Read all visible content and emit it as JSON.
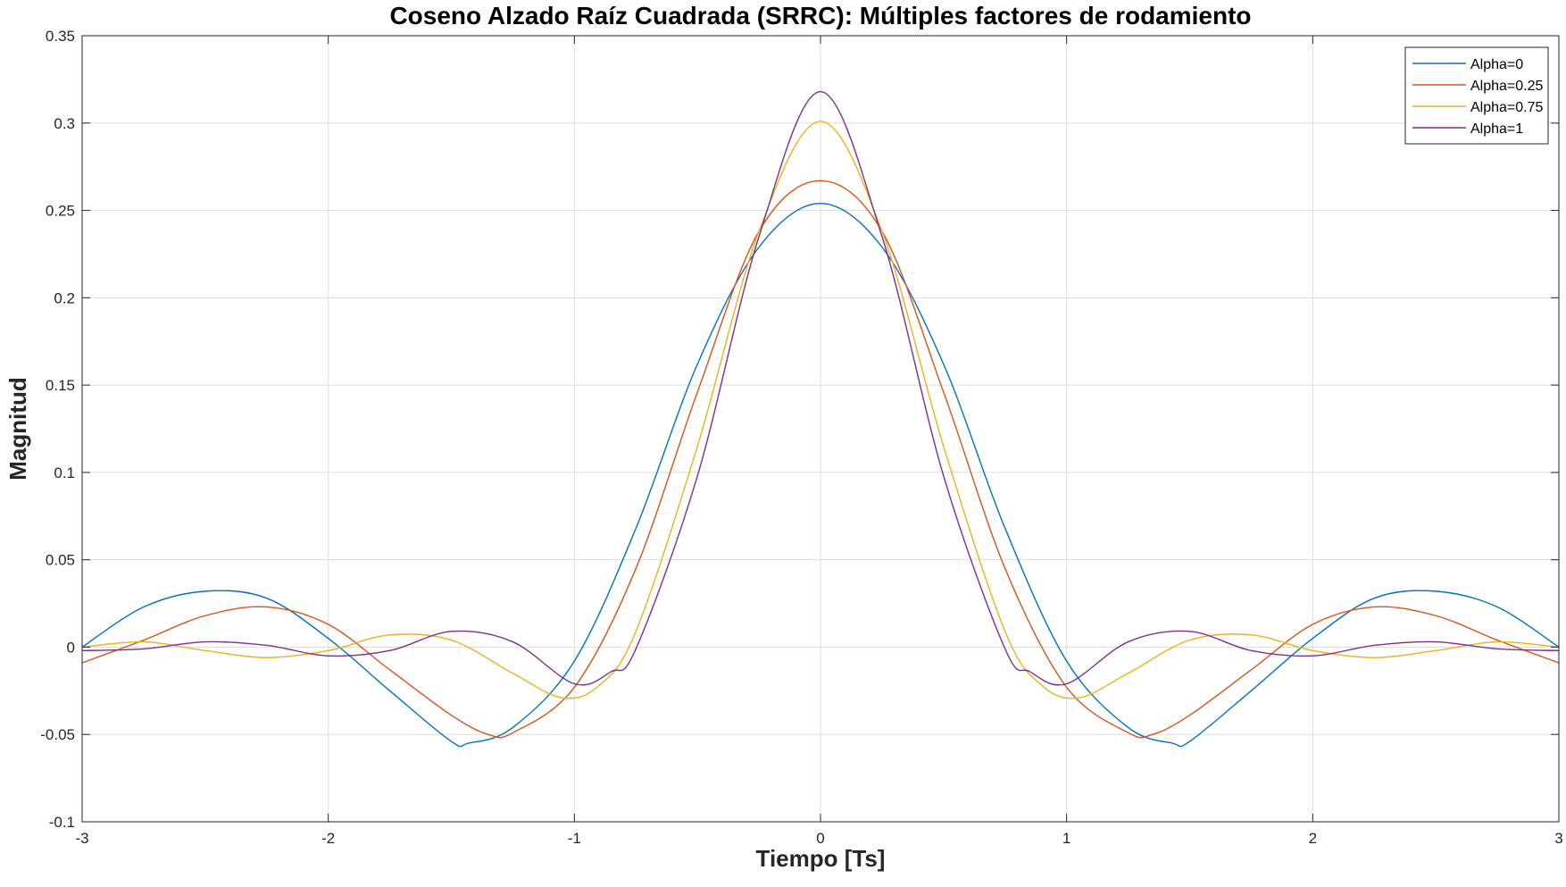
{
  "chart_data": {
    "type": "line",
    "title": "Coseno Alzado Raíz Cuadrada (SRRC): Múltiples factores de rodamiento",
    "xlabel": "Tiempo [Ts]",
    "ylabel": "Magnitud",
    "xlim": [
      -3,
      3
    ],
    "ylim": [
      -0.1,
      0.35
    ],
    "grid": true,
    "legend_position": "top-right",
    "x_ticks": [
      "-3",
      "-2",
      "-1",
      "0",
      "1",
      "2",
      "3"
    ],
    "y_ticks": [
      "-0.1",
      "-0.05",
      "0",
      "0.05",
      "0.1",
      "0.15",
      "0.2",
      "0.25",
      "0.3",
      "0.35"
    ],
    "series": [
      {
        "name": "Alpha=0",
        "color": "#0072BD",
        "points": [
          [
            -3,
            0
          ],
          [
            -2.75,
            0.023
          ],
          [
            -2.5,
            0.032
          ],
          [
            -2.25,
            0.028
          ],
          [
            -2,
            0.005
          ],
          [
            -1.75,
            -0.025
          ],
          [
            -1.5,
            -0.054
          ],
          [
            -1.43,
            -0.055
          ],
          [
            -1.25,
            -0.046
          ],
          [
            -1,
            -0.008
          ],
          [
            -0.75,
            0.068
          ],
          [
            -0.5,
            0.162
          ],
          [
            -0.25,
            0.229
          ],
          [
            0,
            0.254
          ],
          [
            0.25,
            0.229
          ],
          [
            0.5,
            0.162
          ],
          [
            0.75,
            0.068
          ],
          [
            1,
            -0.008
          ],
          [
            1.25,
            -0.046
          ],
          [
            1.43,
            -0.055
          ],
          [
            1.5,
            -0.054
          ],
          [
            1.75,
            -0.025
          ],
          [
            2,
            0.005
          ],
          [
            2.25,
            0.028
          ],
          [
            2.5,
            0.032
          ],
          [
            2.75,
            0.023
          ],
          [
            3,
            0
          ]
        ]
      },
      {
        "name": "Alpha=0.25",
        "color": "#D95319",
        "points": [
          [
            -3,
            -0.009
          ],
          [
            -2.75,
            0.004
          ],
          [
            -2.5,
            0.018
          ],
          [
            -2.25,
            0.023
          ],
          [
            -2,
            0.013
          ],
          [
            -1.75,
            -0.013
          ],
          [
            -1.5,
            -0.039
          ],
          [
            -1.35,
            -0.05
          ],
          [
            -1.25,
            -0.049
          ],
          [
            -1,
            -0.023
          ],
          [
            -0.75,
            0.045
          ],
          [
            -0.5,
            0.146
          ],
          [
            -0.25,
            0.238
          ],
          [
            0,
            0.267
          ],
          [
            0.25,
            0.238
          ],
          [
            0.5,
            0.146
          ],
          [
            0.75,
            0.045
          ],
          [
            1,
            -0.023
          ],
          [
            1.25,
            -0.049
          ],
          [
            1.35,
            -0.05
          ],
          [
            1.5,
            -0.039
          ],
          [
            1.75,
            -0.013
          ],
          [
            2,
            0.013
          ],
          [
            2.25,
            0.023
          ],
          [
            2.5,
            0.018
          ],
          [
            2.75,
            0.004
          ],
          [
            3,
            -0.009
          ]
        ]
      },
      {
        "name": "Alpha=0.75",
        "color": "#EDB120",
        "points": [
          [
            -3,
            0
          ],
          [
            -2.75,
            0.003
          ],
          [
            -2.5,
            -0.002
          ],
          [
            -2.25,
            -0.006
          ],
          [
            -2,
            -0.002
          ],
          [
            -1.75,
            0.007
          ],
          [
            -1.5,
            0.004
          ],
          [
            -1.25,
            -0.015
          ],
          [
            -1.05,
            -0.029
          ],
          [
            -0.9,
            -0.022
          ],
          [
            -0.75,
            0.009
          ],
          [
            -0.5,
            0.115
          ],
          [
            -0.25,
            0.238
          ],
          [
            0,
            0.301
          ],
          [
            0.25,
            0.238
          ],
          [
            0.5,
            0.115
          ],
          [
            0.75,
            0.009
          ],
          [
            0.9,
            -0.022
          ],
          [
            1.05,
            -0.029
          ],
          [
            1.25,
            -0.015
          ],
          [
            1.5,
            0.004
          ],
          [
            1.75,
            0.007
          ],
          [
            2,
            -0.002
          ],
          [
            2.25,
            -0.006
          ],
          [
            2.5,
            -0.002
          ],
          [
            2.75,
            0.003
          ],
          [
            3,
            0
          ]
        ]
      },
      {
        "name": "Alpha=1",
        "color": "#7E2F8E",
        "points": [
          [
            -3,
            -0.002
          ],
          [
            -2.75,
            -0.001
          ],
          [
            -2.5,
            0.003
          ],
          [
            -2.25,
            0.001
          ],
          [
            -2,
            -0.005
          ],
          [
            -1.75,
            -0.002
          ],
          [
            -1.5,
            0.009
          ],
          [
            -1.25,
            0.003
          ],
          [
            -1,
            -0.021
          ],
          [
            -0.85,
            -0.014
          ],
          [
            -0.75,
            -0.001
          ],
          [
            -0.5,
            0.098
          ],
          [
            -0.25,
            0.235
          ],
          [
            0,
            0.318
          ],
          [
            0.25,
            0.235
          ],
          [
            0.5,
            0.098
          ],
          [
            0.75,
            -0.001
          ],
          [
            0.85,
            -0.014
          ],
          [
            1,
            -0.021
          ],
          [
            1.25,
            0.003
          ],
          [
            1.5,
            0.009
          ],
          [
            1.75,
            -0.002
          ],
          [
            2,
            -0.005
          ],
          [
            2.25,
            0.001
          ],
          [
            2.5,
            0.003
          ],
          [
            2.75,
            -0.001
          ],
          [
            3,
            -0.002
          ]
        ]
      }
    ]
  }
}
